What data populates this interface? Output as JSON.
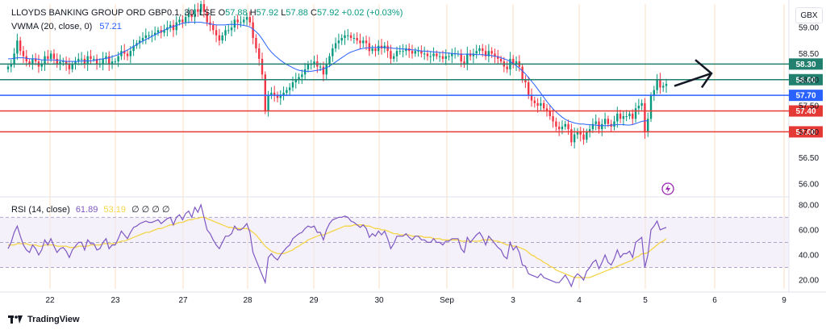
{
  "header": {
    "symbol": "LLOYDS BANKING GROUP ORD GBP0.1, 30, LSE",
    "ohlc": [
      {
        "k": "O",
        "v": "57.88"
      },
      {
        "k": "H",
        "v": "57.92"
      },
      {
        "k": "L",
        "v": "57.88"
      },
      {
        "k": "C",
        "v": "57.92"
      }
    ],
    "change": "+0.02 (+0.03%)",
    "vwma_label": "VWMA (20, close, 0)",
    "vwma_value": "57.21",
    "rsi_label": "RSI (14, close)",
    "rsi_value": "61.89",
    "rsi_ma_value": "53.19",
    "rsi_placeholders": "∅ ∅ ∅ ∅"
  },
  "currency_button": "GBX",
  "brand": "TradingView",
  "colors": {
    "up": "#089981",
    "down": "#f23645",
    "vwma": "#2962ff",
    "rsi": "#7e57c2",
    "rsi_ma": "#f5d547",
    "level_green": "#22806f",
    "level_blue": "#2962ff",
    "level_red": "#e53935"
  },
  "chart_data": [
    {
      "type": "candlestick",
      "y_axis_ticks": [
        "59.00",
        "58.50",
        "58.00",
        "57.50",
        "57.00",
        "56.50",
        "56.00"
      ],
      "ylim": [
        55.8,
        59.45
      ],
      "x_axis_ticks": [
        "22",
        "23",
        "27",
        "28",
        "29",
        "30",
        "Sep",
        "3",
        "4",
        "5",
        "6",
        "9"
      ],
      "horizontal_levels": [
        {
          "label": "58.30",
          "value": 58.3,
          "color": "level_green"
        },
        {
          "label": "58.00",
          "value": 58.0,
          "color": "level_green"
        },
        {
          "label": "57.70",
          "value": 57.7,
          "color": "level_blue"
        },
        {
          "label": "57.40",
          "value": 57.4,
          "color": "level_red"
        },
        {
          "label": "57.00",
          "value": 57.0,
          "color": "level_red"
        }
      ],
      "annotation": "arrow pointing up-right from the 58.00 level",
      "candles_close": [
        58.25,
        58.3,
        58.5,
        58.75,
        58.55,
        58.45,
        58.35,
        58.3,
        58.4,
        58.35,
        58.25,
        58.3,
        58.45,
        58.4,
        58.5,
        58.4,
        58.3,
        58.35,
        58.35,
        58.3,
        58.2,
        58.3,
        58.35,
        58.4,
        58.4,
        58.3,
        58.45,
        58.4,
        58.4,
        58.3,
        58.3,
        58.4,
        58.45,
        58.3,
        58.35,
        58.35,
        58.45,
        58.55,
        58.5,
        58.45,
        58.55,
        58.65,
        58.7,
        58.75,
        58.8,
        58.85,
        58.85,
        58.85,
        58.9,
        58.95,
        58.9,
        58.95,
        59.0,
        59.05,
        58.95,
        59.1,
        59.15,
        59.1,
        59.2,
        59.25,
        59.2,
        59.35,
        59.3,
        59.45,
        59.3,
        59.1,
        59.05,
        58.95,
        58.85,
        58.75,
        58.85,
        58.95,
        58.95,
        59.0,
        59.15,
        59.1,
        59.1,
        59.15,
        59.2,
        59.1,
        58.8,
        58.6,
        58.4,
        58.1,
        57.4,
        57.7,
        57.75,
        57.7,
        57.65,
        57.7,
        57.75,
        57.8,
        57.85,
        57.95,
        58.0,
        58.05,
        58.1,
        58.2,
        58.3,
        58.3,
        58.35,
        58.25,
        58.25,
        58.1,
        58.3,
        58.45,
        58.6,
        58.7,
        58.75,
        58.8,
        58.85,
        58.85,
        58.8,
        58.8,
        58.75,
        58.7,
        58.75,
        58.7,
        58.55,
        58.6,
        58.55,
        58.65,
        58.6,
        58.65,
        58.55,
        58.4,
        58.45,
        58.55,
        58.55,
        58.55,
        58.6,
        58.55,
        58.5,
        58.55,
        58.55,
        58.5,
        58.5,
        58.45,
        58.45,
        58.5,
        58.45,
        58.45,
        58.4,
        58.45,
        58.45,
        58.5,
        58.5,
        58.5,
        58.35,
        58.3,
        58.5,
        58.45,
        58.5,
        58.55,
        58.6,
        58.55,
        58.45,
        58.55,
        58.5,
        58.45,
        58.4,
        58.35,
        58.25,
        58.2,
        58.4,
        58.3,
        58.35,
        58.25,
        58.0,
        57.95,
        57.7,
        57.6,
        57.55,
        57.5,
        57.55,
        57.45,
        57.4,
        57.3,
        57.2,
        57.1,
        57.05,
        57.1,
        57.15,
        57.05,
        56.8,
        56.95,
        57.0,
        56.95,
        56.85,
        57.0,
        57.05,
        57.15,
        57.2,
        57.05,
        57.15,
        57.25,
        57.15,
        57.1,
        57.2,
        57.35,
        57.25,
        57.3,
        57.3,
        57.35,
        57.25,
        57.45,
        57.5,
        57.55,
        57.0,
        57.25,
        57.7,
        57.8,
        58.0,
        57.85,
        57.88,
        57.92
      ],
      "vwma": [
        58.4,
        58.4,
        58.41,
        58.42,
        58.42,
        58.42,
        58.41,
        58.4,
        58.4,
        58.4,
        58.39,
        58.38,
        58.38,
        58.38,
        58.38,
        58.38,
        58.37,
        58.37,
        58.36,
        58.35,
        58.35,
        58.35,
        58.35,
        58.35,
        58.36,
        58.36,
        58.36,
        58.36,
        58.37,
        58.38,
        58.39,
        58.4,
        58.41,
        58.42,
        58.44,
        58.46,
        58.48,
        58.51,
        58.54,
        58.57,
        58.6,
        58.64,
        58.67,
        58.71,
        58.74,
        58.77,
        58.8,
        58.83,
        58.86,
        58.89,
        58.92,
        58.95,
        58.98,
        59.0,
        59.02,
        59.04,
        59.06,
        59.08,
        59.09,
        59.1,
        59.1,
        59.1,
        59.1,
        59.1,
        59.09,
        59.08,
        59.07,
        59.06,
        59.05,
        59.05,
        59.05,
        59.05,
        59.06,
        59.06,
        59.06,
        59.06,
        59.05,
        59.04,
        59.03,
        59.01,
        58.97,
        58.92,
        58.86,
        58.78,
        58.69,
        58.6,
        58.53,
        58.47,
        58.42,
        58.37,
        58.33,
        58.29,
        58.26,
        58.23,
        58.2,
        58.18,
        58.17,
        58.16,
        58.16,
        58.16,
        58.17,
        58.18,
        58.19,
        58.21,
        58.23,
        58.26,
        58.3,
        58.34,
        58.38,
        58.42,
        58.46,
        58.5,
        58.53,
        58.55,
        58.57,
        58.59,
        58.6,
        58.61,
        58.61,
        58.62,
        58.62,
        58.62,
        58.62,
        58.62,
        58.61,
        58.61,
        58.6,
        58.6,
        58.59,
        58.59,
        58.58,
        58.58,
        58.57,
        58.57,
        58.56,
        58.55,
        58.55,
        58.54,
        58.54,
        58.53,
        58.53,
        58.52,
        58.52,
        58.51,
        58.51,
        58.5,
        58.5,
        58.49,
        58.49,
        58.49,
        58.49,
        58.49,
        58.49,
        58.48,
        58.48,
        58.48,
        58.47,
        58.47,
        58.46,
        58.45,
        58.44,
        58.42,
        58.4,
        58.38,
        58.35,
        58.31,
        58.27,
        58.22,
        58.17,
        58.11,
        58.04,
        57.97,
        57.9,
        57.82,
        57.74,
        57.66,
        57.58,
        57.51,
        57.44,
        57.38,
        57.33,
        57.28,
        57.24,
        57.21,
        57.19,
        57.17,
        57.16,
        57.15,
        57.15,
        57.14,
        57.14,
        57.13,
        57.13,
        57.12,
        57.12,
        57.12,
        57.12,
        57.13,
        57.13,
        57.14,
        57.14,
        57.14,
        57.13,
        57.13,
        57.14,
        57.16,
        57.18,
        57.2,
        57.21,
        57.21
      ],
      "rsi": [
        45,
        50,
        58,
        63,
        55,
        48,
        44,
        42,
        48,
        45,
        40,
        44,
        52,
        48,
        53,
        47,
        42,
        45,
        46,
        43,
        38,
        44,
        47,
        50,
        50,
        44,
        52,
        49,
        49,
        44,
        45,
        50,
        53,
        45,
        48,
        48,
        53,
        59,
        56,
        53,
        58,
        62,
        63,
        65,
        66,
        67,
        66,
        66,
        67,
        68,
        65,
        67,
        69,
        70,
        64,
        70,
        72,
        68,
        73,
        75,
        70,
        78,
        74,
        80,
        70,
        60,
        57,
        52,
        48,
        45,
        50,
        55,
        55,
        57,
        63,
        60,
        60,
        62,
        65,
        58,
        42,
        36,
        30,
        24,
        18,
        38,
        41,
        38,
        36,
        40,
        43,
        46,
        48,
        53,
        55,
        57,
        58,
        61,
        63,
        62,
        63,
        58,
        58,
        52,
        60,
        65,
        68,
        69,
        70,
        70,
        71,
        70,
        67,
        66,
        64,
        62,
        64,
        61,
        54,
        57,
        55,
        59,
        56,
        59,
        53,
        45,
        49,
        55,
        55,
        55,
        57,
        54,
        52,
        55,
        55,
        52,
        52,
        50,
        50,
        53,
        50,
        50,
        48,
        51,
        51,
        53,
        53,
        53,
        45,
        42,
        54,
        50,
        53,
        56,
        58,
        54,
        48,
        55,
        52,
        49,
        46,
        44,
        39,
        37,
        50,
        44,
        47,
        42,
        32,
        31,
        25,
        24,
        23,
        22,
        25,
        22,
        21,
        20,
        19,
        18,
        18,
        21,
        24,
        20,
        15,
        22,
        25,
        23,
        20,
        27,
        30,
        34,
        36,
        29,
        34,
        40,
        34,
        32,
        37,
        44,
        38,
        41,
        41,
        43,
        38,
        50,
        52,
        54,
        30,
        40,
        60,
        63,
        67,
        60,
        61,
        62
      ],
      "rsi_ma": [
        48,
        48,
        48,
        49,
        49,
        49,
        49,
        48,
        48,
        48,
        47,
        47,
        48,
        48,
        48,
        48,
        47,
        47,
        47,
        47,
        46,
        46,
        46,
        47,
        47,
        47,
        47,
        48,
        48,
        48,
        48,
        49,
        49,
        49,
        49,
        49,
        50,
        51,
        51,
        52,
        53,
        54,
        55,
        56,
        57,
        58,
        58,
        59,
        60,
        61,
        61,
        62,
        63,
        64,
        64,
        65,
        66,
        66,
        67,
        68,
        68,
        69,
        69,
        70,
        70,
        69,
        68,
        67,
        66,
        65,
        64,
        63,
        62,
        62,
        61,
        61,
        61,
        61,
        61,
        60,
        58,
        56,
        53,
        50,
        47,
        45,
        43,
        42,
        41,
        41,
        41,
        42,
        43,
        44,
        46,
        47,
        49,
        50,
        52,
        53,
        54,
        55,
        56,
        56,
        57,
        58,
        59,
        60,
        61,
        62,
        63,
        63,
        63,
        64,
        64,
        64,
        64,
        63,
        63,
        62,
        61,
        61,
        60,
        60,
        59,
        58,
        57,
        57,
        56,
        56,
        56,
        56,
        55,
        55,
        55,
        55,
        54,
        54,
        54,
        53,
        53,
        53,
        52,
        52,
        52,
        52,
        52,
        52,
        51,
        51,
        51,
        51,
        51,
        51,
        51,
        52,
        52,
        52,
        52,
        51,
        51,
        50,
        49,
        48,
        48,
        47,
        47,
        46,
        45,
        44,
        42,
        40,
        39,
        37,
        36,
        34,
        33,
        31,
        30,
        28,
        27,
        26,
        25,
        24,
        23,
        22,
        22,
        22,
        22,
        22,
        22,
        23,
        24,
        25,
        26,
        27,
        28,
        29,
        30,
        31,
        32,
        33,
        34,
        35,
        36,
        38,
        39,
        41,
        41,
        42,
        44,
        46,
        48,
        50,
        51,
        53
      ],
      "rsi_ticks": [
        "80.00",
        "60.00",
        "40.00",
        "20.00"
      ],
      "rsi_ylim": [
        13,
        85
      ],
      "rsi_bands": [
        30,
        70
      ]
    }
  ]
}
